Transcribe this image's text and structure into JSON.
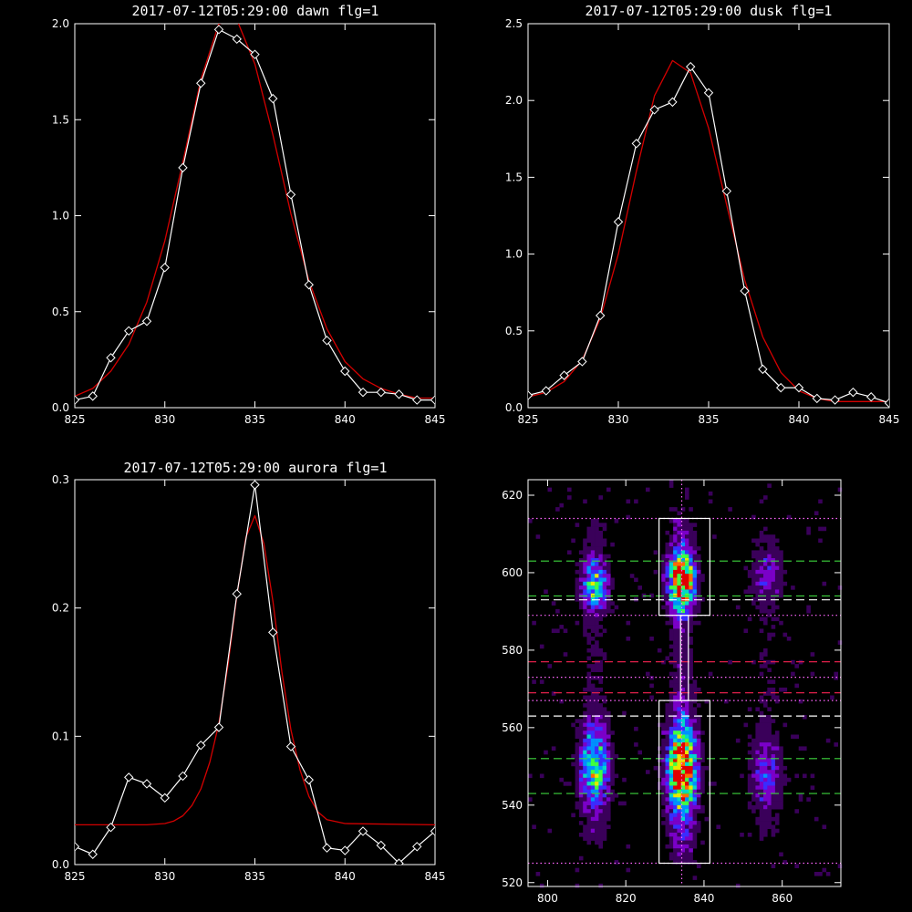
{
  "colors": {
    "background": "#000000",
    "axes": "#ffffff",
    "data_line": "#ffffff",
    "fit_line": "#d40000",
    "guide_white": "#ffffff",
    "guide_green": "#3dd43d",
    "guide_red": "#e0204a",
    "guide_magenta": "#ff66ff"
  },
  "chart_data": [
    {
      "type": "line",
      "title": "2017-07-12T05:29:00 dawn flg=1",
      "xlim": [
        825,
        845
      ],
      "ylim": [
        0,
        2.0
      ],
      "xticks": [
        "825",
        "830",
        "835",
        "840",
        "845"
      ],
      "yticks": [
        "0.0",
        "0.5",
        "1.0",
        "1.5",
        "2.0"
      ],
      "series": [
        {
          "marker": "diamond",
          "x": [
            825,
            826,
            827,
            828,
            829,
            830,
            831,
            832,
            833,
            834,
            835,
            836,
            837,
            838,
            839,
            840,
            841,
            842,
            843,
            844,
            845
          ],
          "values": [
            0.04,
            0.06,
            0.26,
            0.4,
            0.45,
            0.73,
            1.25,
            1.69,
            1.97,
            1.92,
            1.84,
            1.61,
            1.11,
            0.64,
            0.35,
            0.19,
            0.08,
            0.08,
            0.07,
            0.04,
            0.04
          ]
        },
        {
          "style": "smooth",
          "x": [
            825,
            826,
            827,
            828,
            829,
            830,
            831,
            832,
            833,
            834,
            835,
            836,
            837,
            838,
            839,
            840,
            841,
            842,
            843,
            844,
            845
          ],
          "values": [
            0.06,
            0.1,
            0.19,
            0.33,
            0.55,
            0.87,
            1.28,
            1.71,
            2.0,
            2.02,
            1.79,
            1.42,
            1.01,
            0.66,
            0.41,
            0.24,
            0.15,
            0.1,
            0.07,
            0.05,
            0.05
          ]
        }
      ]
    },
    {
      "type": "line",
      "title": "2017-07-12T05:29:00 dusk flg=1",
      "xlim": [
        825,
        845
      ],
      "ylim": [
        0,
        2.5
      ],
      "xticks": [
        "825",
        "830",
        "835",
        "840",
        "845"
      ],
      "yticks": [
        "0.0",
        "0.5",
        "1.0",
        "1.5",
        "2.0",
        "2.5"
      ],
      "series": [
        {
          "marker": "diamond",
          "x": [
            825,
            826,
            827,
            828,
            829,
            830,
            831,
            832,
            833,
            834,
            835,
            836,
            837,
            838,
            839,
            840,
            841,
            842,
            843,
            844,
            845
          ],
          "values": [
            0.08,
            0.11,
            0.21,
            0.3,
            0.6,
            1.21,
            1.72,
            1.94,
            1.99,
            2.22,
            2.05,
            1.41,
            0.76,
            0.25,
            0.13,
            0.13,
            0.06,
            0.05,
            0.1,
            0.07,
            0.03
          ]
        },
        {
          "style": "smooth",
          "x": [
            825,
            826,
            827,
            828,
            829,
            830,
            831,
            832,
            833,
            834,
            835,
            836,
            837,
            838,
            839,
            840,
            841,
            842,
            843,
            844,
            845
          ],
          "values": [
            0.07,
            0.1,
            0.17,
            0.31,
            0.58,
            1.0,
            1.54,
            2.03,
            2.26,
            2.18,
            1.82,
            1.32,
            0.83,
            0.46,
            0.23,
            0.11,
            0.06,
            0.04,
            0.04,
            0.04,
            0.04
          ]
        }
      ]
    },
    {
      "type": "line",
      "title": "2017-07-12T05:29:00 aurora flg=1",
      "xlim": [
        825,
        845
      ],
      "ylim": [
        0,
        0.3
      ],
      "xticks": [
        "825",
        "830",
        "835",
        "840",
        "845"
      ],
      "yticks": [
        "0.0",
        "0.1",
        "0.2",
        "0.3"
      ],
      "series": [
        {
          "marker": "diamond",
          "x": [
            825,
            826,
            827,
            828,
            829,
            830,
            831,
            832,
            833,
            834,
            835,
            836,
            837,
            838,
            839,
            840,
            841,
            842,
            843,
            844,
            845
          ],
          "values": [
            0.014,
            0.008,
            0.029,
            0.068,
            0.063,
            0.052,
            0.069,
            0.093,
            0.107,
            0.211,
            0.296,
            0.181,
            0.092,
            0.066,
            0.013,
            0.011,
            0.026,
            0.015,
            0.001,
            0.014,
            0.026
          ]
        },
        {
          "style": "smooth",
          "x": [
            825,
            829,
            830,
            830.5,
            831,
            831.5,
            832,
            832.5,
            833,
            833.5,
            834,
            834.5,
            835,
            835.5,
            836,
            836.5,
            837,
            837.5,
            838,
            838.5,
            839,
            840,
            845
          ],
          "values": [
            0.031,
            0.031,
            0.032,
            0.034,
            0.038,
            0.046,
            0.059,
            0.08,
            0.11,
            0.155,
            0.21,
            0.255,
            0.272,
            0.25,
            0.205,
            0.15,
            0.105,
            0.074,
            0.053,
            0.041,
            0.035,
            0.032,
            0.031
          ]
        }
      ]
    },
    {
      "type": "heatmap",
      "xlim": [
        795,
        875
      ],
      "ylim": [
        519,
        624
      ],
      "xticks": [
        "800",
        "820",
        "840",
        "860"
      ],
      "yticks": [
        "520",
        "540",
        "560",
        "580",
        "600",
        "620"
      ],
      "colormap": [
        "#000000",
        "#3a005a",
        "#7a00c8",
        "#3a2cff",
        "#0090ff",
        "#00d8c8",
        "#40ff40",
        "#e8e800",
        "#ff6a00",
        "#e00000"
      ],
      "blobs": [
        {
          "x": 834.3,
          "y": 598,
          "sx": 2.2,
          "sy": 5,
          "amp": 1.0
        },
        {
          "x": 834.3,
          "y": 549,
          "sx": 2.4,
          "sy": 8,
          "amp": 1.0
        },
        {
          "x": 812,
          "y": 597,
          "sx": 2.2,
          "sy": 4,
          "amp": 0.55
        },
        {
          "x": 812,
          "y": 550,
          "sx": 2.4,
          "sy": 7,
          "amp": 0.6
        },
        {
          "x": 856,
          "y": 599,
          "sx": 2.5,
          "sy": 4,
          "amp": 0.22
        },
        {
          "x": 856,
          "y": 548,
          "sx": 2.5,
          "sy": 6,
          "amp": 0.25
        }
      ],
      "boxes": [
        {
          "x0": 828.5,
          "x1": 841.5,
          "y0": 589,
          "y1": 614
        },
        {
          "x0": 828.5,
          "x1": 841.5,
          "y0": 525,
          "y1": 567
        },
        {
          "x0": 834,
          "x1": 836,
          "y0": 567,
          "y1": 589
        }
      ],
      "vline_dotted": 834.3,
      "hlines": [
        {
          "y": 614,
          "style": "dotted",
          "color": "magenta"
        },
        {
          "y": 589,
          "style": "dotted",
          "color": "magenta"
        },
        {
          "y": 603,
          "style": "dashed",
          "color": "green"
        },
        {
          "y": 594,
          "style": "dashed",
          "color": "green"
        },
        {
          "y": 593,
          "style": "dashed",
          "color": "white"
        },
        {
          "y": 577,
          "style": "dashed",
          "color": "red"
        },
        {
          "y": 573,
          "style": "dotted",
          "color": "magenta"
        },
        {
          "y": 569,
          "style": "dashed",
          "color": "red"
        },
        {
          "y": 567,
          "style": "dotted",
          "color": "magenta"
        },
        {
          "y": 563,
          "style": "dashed",
          "color": "white"
        },
        {
          "y": 552,
          "style": "dashed",
          "color": "green"
        },
        {
          "y": 543,
          "style": "dashed",
          "color": "green"
        },
        {
          "y": 525,
          "style": "dotted",
          "color": "magenta"
        }
      ]
    }
  ]
}
